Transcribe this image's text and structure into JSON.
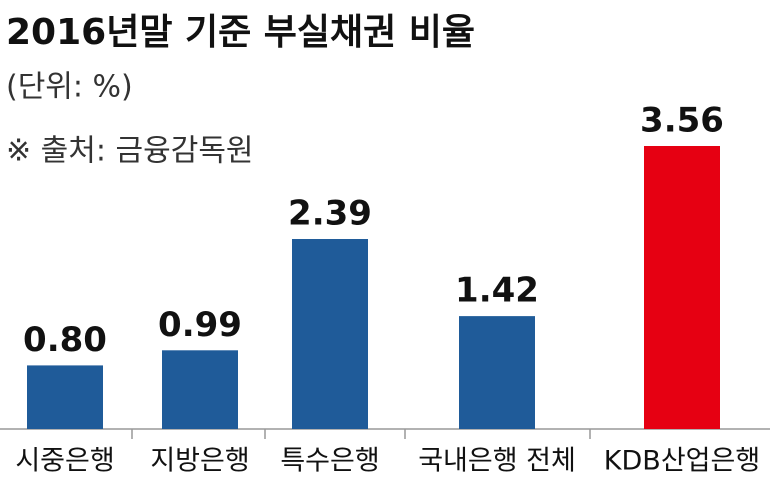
{
  "chart_data": {
    "type": "bar",
    "title": "2016년말 기준 부실채권 비율",
    "subtitle": "(단위: %)",
    "source": "※ 출처: 금융감독원",
    "categories": [
      "시중은행",
      "지방은행",
      "특수은행",
      "국내은행 전체",
      "KDB산업은행"
    ],
    "values": [
      0.8,
      0.99,
      2.39,
      1.42,
      3.56
    ],
    "value_labels": [
      "0.80",
      "0.99",
      "2.39",
      "1.42",
      "3.56"
    ],
    "colors": [
      "#1f5b99",
      "#1f5b99",
      "#1f5b99",
      "#1f5b99",
      "#e60012"
    ]
  }
}
